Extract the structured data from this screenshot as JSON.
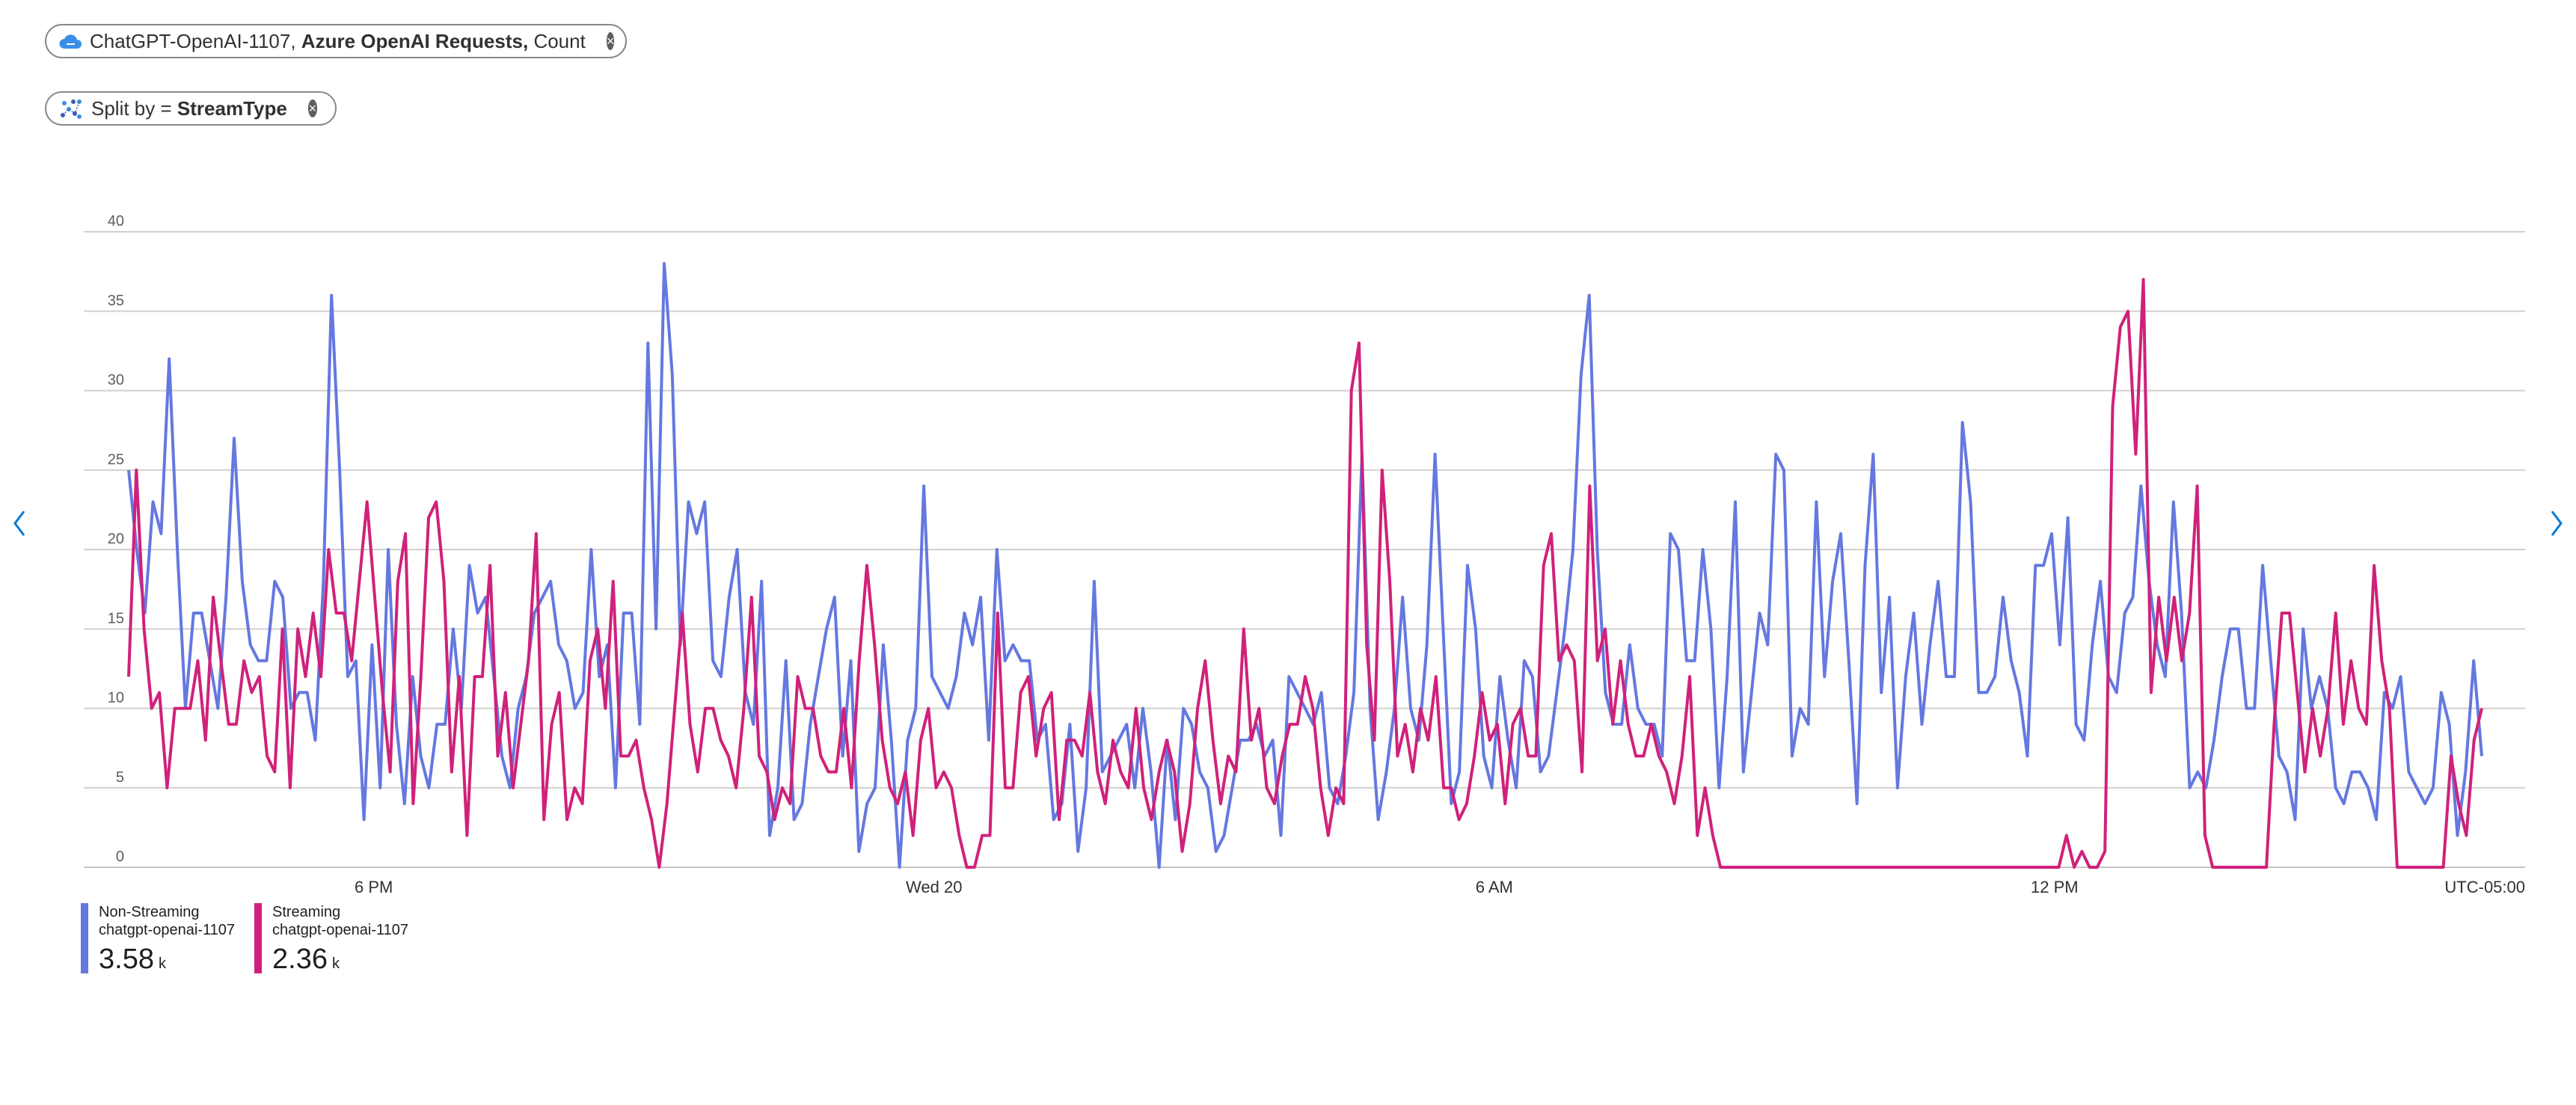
{
  "filter_pill": {
    "resource": "ChatGPT-OpenAI-1107,",
    "metric": "Azure OpenAI Requests,",
    "aggregation": "Count",
    "icon": "cloud-icon"
  },
  "split_pill": {
    "label": "Split by =",
    "value": "StreamType",
    "icon": "split-icon"
  },
  "navigation": {
    "left_icon": "chevron-left-icon",
    "right_icon": "chevron-right-icon"
  },
  "chart_data": {
    "type": "line",
    "x_axis": {
      "start_hour": 15,
      "end_hour": 48.6,
      "ticks": [
        {
          "label": "6 PM",
          "hour": 18.5
        },
        {
          "label": "Wed 20",
          "hour": 26.5
        },
        {
          "label": "6 AM",
          "hour": 34.5
        },
        {
          "label": "12 PM",
          "hour": 42.5
        }
      ],
      "timezone": "UTC-05:00"
    },
    "y_axis": {
      "min": 0,
      "max": 40,
      "ticks": [
        0,
        5,
        10,
        15,
        20,
        25,
        30,
        35,
        40
      ]
    },
    "grid": true,
    "series": [
      {
        "name": "Non-Streaming",
        "resource": "chatgpt-openai-1107",
        "total": "3.58",
        "unit": "k",
        "color": "#6478e0",
        "values": [
          25,
          20,
          16,
          23,
          21,
          32,
          20,
          10,
          16,
          16,
          13,
          10,
          17,
          27,
          18,
          14,
          13,
          13,
          18,
          17,
          10,
          11,
          11,
          8,
          18,
          36,
          25,
          12,
          13,
          3,
          14,
          5,
          20,
          9,
          4,
          12,
          7,
          5,
          9,
          9,
          15,
          10,
          19,
          16,
          17,
          12,
          7,
          5,
          10,
          12,
          16,
          17,
          18,
          14,
          13,
          10,
          11,
          20,
          12,
          14,
          5,
          16,
          16,
          9,
          33,
          15,
          38,
          31,
          14,
          23,
          21,
          23,
          13,
          12,
          17,
          20,
          11,
          9,
          18,
          2,
          5,
          13,
          3,
          4,
          9,
          12,
          15,
          17,
          7,
          13,
          1,
          4,
          5,
          14,
          8,
          0,
          8,
          10,
          24,
          12,
          11,
          10,
          12,
          16,
          14,
          17,
          8,
          20,
          13,
          14,
          13,
          13,
          8,
          9,
          3,
          4,
          9,
          1,
          5,
          18,
          6,
          7,
          8,
          9,
          5,
          10,
          6,
          0,
          8,
          3,
          10,
          9,
          6,
          5,
          1,
          2,
          5,
          8,
          8,
          9,
          7,
          8,
          2,
          12,
          11,
          10,
          9,
          11,
          5,
          4,
          7,
          11,
          26,
          10,
          3,
          6,
          10,
          17,
          10,
          8,
          14,
          26,
          15,
          4,
          6,
          19,
          15,
          7,
          5,
          12,
          8,
          5,
          13,
          12,
          6,
          7,
          11,
          15,
          20,
          31,
          36,
          20,
          11,
          9,
          9,
          14,
          10,
          9,
          9,
          7,
          21,
          20,
          13,
          13,
          20,
          15,
          5,
          12,
          23,
          6,
          11,
          16,
          14,
          26,
          25,
          7,
          10,
          9,
          23,
          12,
          18,
          21,
          13,
          4,
          19,
          26,
          11,
          17,
          5,
          12,
          16,
          9,
          14,
          18,
          12,
          12,
          28,
          23,
          11,
          11,
          12,
          17,
          13,
          11,
          7,
          19,
          19,
          21,
          14,
          22,
          9,
          8,
          14,
          18,
          12,
          11,
          16,
          17,
          24,
          18,
          14,
          12,
          23,
          16,
          5,
          6,
          5,
          8,
          12,
          15,
          15,
          10,
          10,
          19,
          13,
          7,
          6,
          3,
          15,
          10,
          12,
          10,
          5,
          4,
          6,
          6,
          5,
          3,
          11,
          10,
          12,
          6,
          5,
          4,
          5,
          11,
          9,
          2,
          6,
          13,
          7
        ]
      },
      {
        "name": "Streaming",
        "resource": "chatgpt-openai-1107",
        "total": "2.36",
        "unit": "k",
        "color": "#d0217a",
        "values": [
          12,
          25,
          15,
          10,
          11,
          5,
          10,
          10,
          10,
          13,
          8,
          17,
          13,
          9,
          9,
          13,
          11,
          12,
          7,
          6,
          15,
          5,
          15,
          12,
          16,
          12,
          20,
          16,
          16,
          13,
          18,
          23,
          17,
          11,
          6,
          18,
          21,
          4,
          12,
          22,
          23,
          18,
          6,
          12,
          2,
          12,
          12,
          19,
          7,
          11,
          5,
          9,
          13,
          21,
          3,
          9,
          11,
          3,
          5,
          4,
          13,
          15,
          10,
          18,
          7,
          7,
          8,
          5,
          3,
          0,
          4,
          10,
          16,
          9,
          6,
          10,
          10,
          8,
          7,
          5,
          10,
          17,
          7,
          6,
          3,
          5,
          4,
          12,
          10,
          10,
          7,
          6,
          6,
          10,
          5,
          13,
          19,
          14,
          8,
          5,
          4,
          6,
          2,
          8,
          10,
          5,
          6,
          5,
          2,
          0,
          0,
          2,
          2,
          16,
          5,
          5,
          11,
          12,
          7,
          10,
          11,
          3,
          8,
          8,
          7,
          11,
          6,
          4,
          8,
          6,
          5,
          10,
          5,
          3,
          6,
          8,
          6,
          1,
          4,
          10,
          13,
          8,
          4,
          7,
          6,
          15,
          8,
          10,
          5,
          4,
          7,
          9,
          9,
          12,
          10,
          5,
          2,
          5,
          4,
          30,
          33,
          14,
          8,
          25,
          18,
          7,
          9,
          6,
          10,
          8,
          12,
          5,
          5,
          3,
          4,
          7,
          11,
          8,
          9,
          4,
          9,
          10,
          7,
          7,
          19,
          21,
          13,
          14,
          13,
          6,
          24,
          13,
          15,
          9,
          13,
          9,
          7,
          7,
          9,
          7,
          6,
          4,
          7,
          12,
          2,
          5,
          2,
          0,
          0,
          0,
          0,
          0,
          0,
          0,
          0,
          0,
          0,
          0,
          0,
          0,
          0,
          0,
          0,
          0,
          0,
          0,
          0,
          0,
          0,
          0,
          0,
          0,
          0,
          0,
          0,
          0,
          0,
          0,
          0,
          0,
          0,
          0,
          0,
          0,
          0,
          0,
          0,
          0,
          0,
          0,
          0,
          0,
          2,
          0,
          1,
          0,
          0,
          1,
          29,
          34,
          35,
          26,
          37,
          11,
          17,
          13,
          17,
          13,
          16,
          24,
          2,
          0,
          0,
          0,
          0,
          0,
          0,
          0,
          0,
          9,
          16,
          16,
          11,
          6,
          10,
          7,
          10,
          16,
          9,
          13,
          10,
          9,
          19,
          13,
          10,
          0,
          0,
          0,
          0,
          0,
          0,
          0,
          7,
          4,
          2,
          8,
          10
        ]
      }
    ]
  }
}
